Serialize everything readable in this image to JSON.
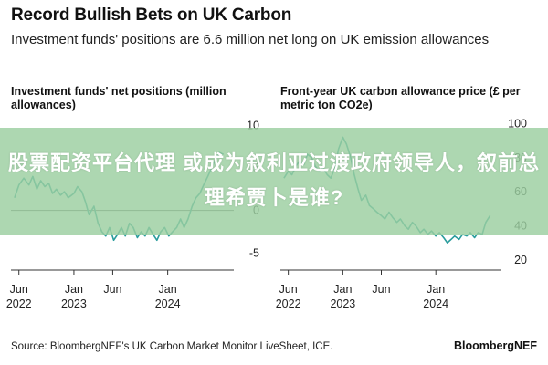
{
  "header": {
    "title": "Record Bullish Bets on UK Carbon",
    "subtitle": "Investment funds' positions are 6.6 million net long on UK emission allowances"
  },
  "overlay": {
    "text": "股票配资平台代理 或成为叙利亚过渡政府领导人，叙前总理希贾卜是谁?"
  },
  "footer": {
    "source": "Source: BloombergNEF's UK Carbon Market Monitor LiveSheet, ICE.",
    "brand": "BloombergNEF"
  },
  "colors": {
    "line": "#2a9c9c",
    "zero": "#666666",
    "axis": "#333333",
    "overlay": "#9bcea0"
  },
  "chart_data": [
    {
      "type": "line",
      "title": "Investment funds' net positions (million allowances)",
      "y_ticks": [
        10,
        5,
        0,
        -5
      ],
      "ylim": [
        -7,
        11
      ],
      "xlim": [
        "2022-05-01",
        "2024-08-31"
      ],
      "x_ticks": [
        {
          "date": "2022-06-01",
          "line1": "Jun",
          "line2": "2022"
        },
        {
          "date": "2023-01-01",
          "line1": "Jan",
          "line2": "2023"
        },
        {
          "date": "2023-06-01",
          "line1": "Jun",
          "line2": ""
        },
        {
          "date": "2024-01-01",
          "line1": "Jan",
          "line2": "2024"
        }
      ],
      "zero_line": true,
      "series": [
        {
          "x": [
            "2022-05-15",
            "2022-06-01",
            "2022-06-20",
            "2022-07-10",
            "2022-07-25",
            "2022-08-10",
            "2022-08-25",
            "2022-09-10",
            "2022-09-25",
            "2022-10-10",
            "2022-10-25",
            "2022-11-10",
            "2022-11-25",
            "2022-12-10",
            "2023-01-01",
            "2023-01-15",
            "2023-02-01",
            "2023-02-15",
            "2023-03-01",
            "2023-03-20",
            "2023-04-05",
            "2023-04-20",
            "2023-05-05",
            "2023-05-20",
            "2023-06-05",
            "2023-06-20",
            "2023-07-05",
            "2023-07-20",
            "2023-08-05",
            "2023-08-20",
            "2023-09-05",
            "2023-09-20",
            "2023-10-05",
            "2023-10-20",
            "2023-11-05",
            "2023-11-20",
            "2023-12-05",
            "2023-12-20",
            "2024-01-05",
            "2024-01-20",
            "2024-02-05",
            "2024-02-20",
            "2024-03-05",
            "2024-03-20",
            "2024-04-05",
            "2024-04-20",
            "2024-05-05",
            "2024-05-20",
            "2024-06-05",
            "2024-06-20",
            "2024-07-05",
            "2024-07-20",
            "2024-08-05"
          ],
          "y": [
            1.5,
            3.0,
            3.8,
            3.0,
            4.0,
            2.5,
            3.5,
            2.8,
            3.2,
            2.0,
            2.5,
            1.8,
            2.2,
            1.5,
            2.0,
            2.8,
            2.2,
            1.0,
            -0.5,
            0.5,
            -1.5,
            -2.5,
            -3.0,
            -2.0,
            -3.5,
            -2.8,
            -2.0,
            -3.0,
            -1.5,
            -2.0,
            -3.2,
            -2.5,
            -3.0,
            -2.0,
            -2.8,
            -3.5,
            -2.5,
            -2.0,
            -3.0,
            -2.5,
            -2.0,
            -1.0,
            -2.0,
            -1.0,
            0.5,
            1.5,
            2.0,
            3.0,
            4.0,
            5.0,
            6.0,
            6.8,
            6.6
          ]
        }
      ]
    },
    {
      "type": "line",
      "title": "Front-year UK carbon allowance price (£ per metric ton CO2e)",
      "y_ticks": [
        100,
        80,
        60,
        40,
        20
      ],
      "ylim": [
        14,
        104
      ],
      "xlim": [
        "2022-05-01",
        "2024-08-31"
      ],
      "x_ticks": [
        {
          "date": "2022-06-01",
          "line1": "Jun",
          "line2": "2022"
        },
        {
          "date": "2023-01-01",
          "line1": "Jan",
          "line2": "2023"
        },
        {
          "date": "2023-06-01",
          "line1": "Jun",
          "line2": ""
        },
        {
          "date": "2024-01-01",
          "line1": "Jan",
          "line2": "2024"
        }
      ],
      "zero_line": false,
      "series": [
        {
          "x": [
            "2022-05-15",
            "2022-06-01",
            "2022-06-15",
            "2022-07-01",
            "2022-07-15",
            "2022-08-01",
            "2022-08-15",
            "2022-09-01",
            "2022-09-15",
            "2022-10-01",
            "2022-10-15",
            "2022-11-01",
            "2022-11-15",
            "2022-12-01",
            "2022-12-15",
            "2023-01-01",
            "2023-01-15",
            "2023-02-01",
            "2023-02-15",
            "2023-03-01",
            "2023-03-15",
            "2023-04-01",
            "2023-04-15",
            "2023-05-01",
            "2023-05-15",
            "2023-06-01",
            "2023-06-15",
            "2023-07-01",
            "2023-07-15",
            "2023-08-01",
            "2023-08-15",
            "2023-09-01",
            "2023-09-15",
            "2023-10-01",
            "2023-10-15",
            "2023-11-01",
            "2023-11-15",
            "2023-12-01",
            "2023-12-15",
            "2024-01-01",
            "2024-01-15",
            "2024-02-01",
            "2024-02-15",
            "2024-03-01",
            "2024-03-15",
            "2024-04-01",
            "2024-04-15",
            "2024-05-01",
            "2024-05-15",
            "2024-06-01",
            "2024-06-15",
            "2024-07-01",
            "2024-07-15",
            "2024-08-01"
          ],
          "y": [
            68,
            72,
            70,
            75,
            78,
            76,
            82,
            80,
            75,
            72,
            74,
            70,
            68,
            74,
            85,
            92,
            88,
            80,
            70,
            62,
            55,
            58,
            52,
            50,
            48,
            46,
            44,
            48,
            45,
            42,
            44,
            40,
            38,
            42,
            40,
            36,
            38,
            35,
            37,
            34,
            36,
            33,
            30,
            32,
            34,
            32,
            35,
            34,
            36,
            33,
            36,
            35,
            42,
            46
          ]
        }
      ]
    }
  ]
}
